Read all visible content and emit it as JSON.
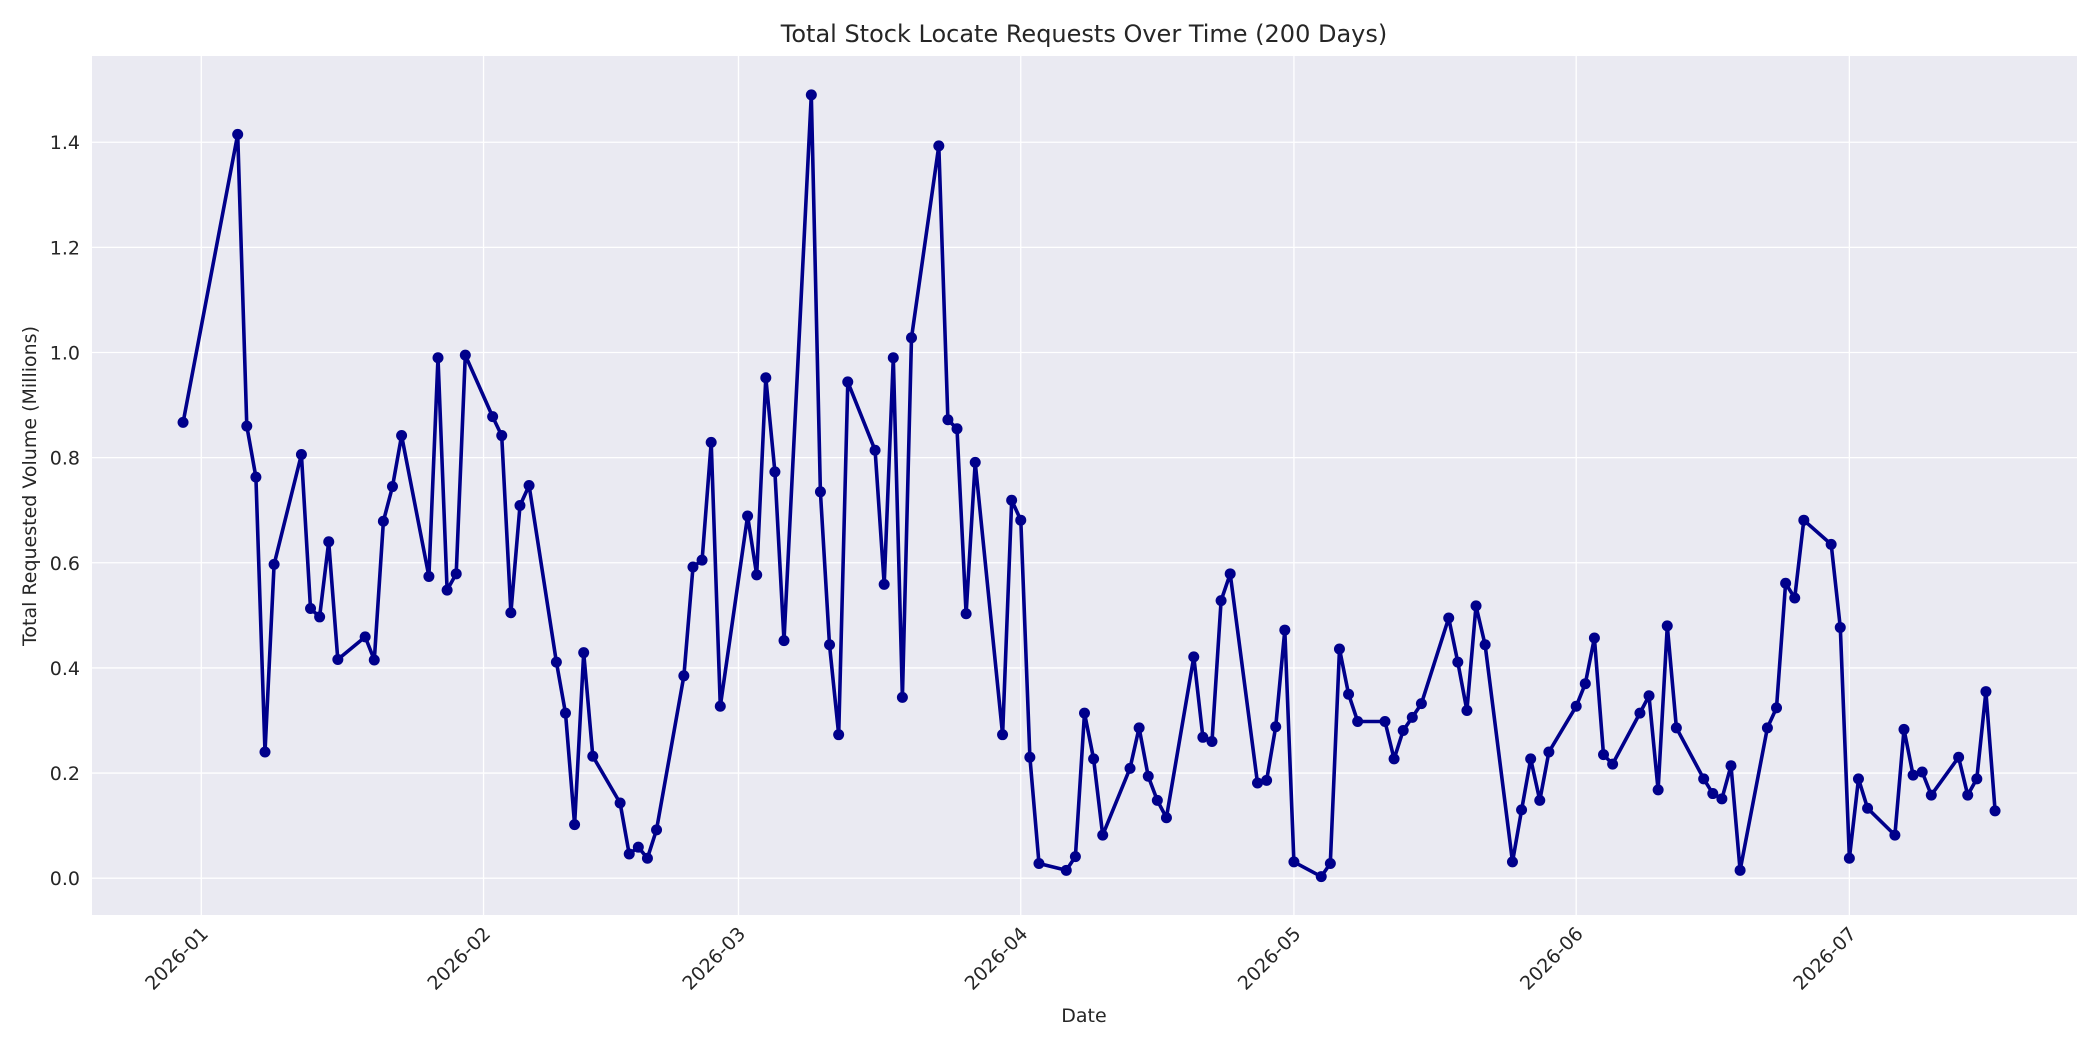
{
  "chart_data": {
    "type": "line",
    "title": "Total Stock Locate Requests Over Time (200 Days)",
    "xlabel": "Date",
    "ylabel": "Total Requested Volume (Millions)",
    "x": [
      "2025-12-30",
      "2026-01-05",
      "2026-01-06",
      "2026-01-07",
      "2026-01-08",
      "2026-01-09",
      "2026-01-12",
      "2026-01-13",
      "2026-01-14",
      "2026-01-15",
      "2026-01-16",
      "2026-01-19",
      "2026-01-20",
      "2026-01-21",
      "2026-01-22",
      "2026-01-23",
      "2026-01-26",
      "2026-01-27",
      "2026-01-28",
      "2026-01-29",
      "2026-01-30",
      "2026-02-02",
      "2026-02-03",
      "2026-02-04",
      "2026-02-05",
      "2026-02-06",
      "2026-02-09",
      "2026-02-10",
      "2026-02-11",
      "2026-02-12",
      "2026-02-13",
      "2026-02-16",
      "2026-02-17",
      "2026-02-18",
      "2026-02-19",
      "2026-02-20",
      "2026-02-23",
      "2026-02-24",
      "2026-02-25",
      "2026-02-26",
      "2026-02-27",
      "2026-03-02",
      "2026-03-03",
      "2026-03-04",
      "2026-03-05",
      "2026-03-06",
      "2026-03-09",
      "2026-03-10",
      "2026-03-11",
      "2026-03-12",
      "2026-03-13",
      "2026-03-16",
      "2026-03-17",
      "2026-03-18",
      "2026-03-19",
      "2026-03-20",
      "2026-03-23",
      "2026-03-24",
      "2026-03-25",
      "2026-03-26",
      "2026-03-27",
      "2026-03-30",
      "2026-03-31",
      "2026-04-01",
      "2026-04-02",
      "2026-04-03",
      "2026-04-06",
      "2026-04-07",
      "2026-04-08",
      "2026-04-09",
      "2026-04-10",
      "2026-04-13",
      "2026-04-14",
      "2026-04-15",
      "2026-04-16",
      "2026-04-17",
      "2026-04-20",
      "2026-04-21",
      "2026-04-22",
      "2026-04-23",
      "2026-04-24",
      "2026-04-27",
      "2026-04-28",
      "2026-04-29",
      "2026-04-30",
      "2026-05-01",
      "2026-05-04",
      "2026-05-05",
      "2026-05-06",
      "2026-05-07",
      "2026-05-08",
      "2026-05-11",
      "2026-05-12",
      "2026-05-13",
      "2026-05-14",
      "2026-05-15",
      "2026-05-18",
      "2026-05-19",
      "2026-05-20",
      "2026-05-21",
      "2026-05-22",
      "2026-05-25",
      "2026-05-26",
      "2026-05-27",
      "2026-05-28",
      "2026-05-29",
      "2026-06-01",
      "2026-06-02",
      "2026-06-03",
      "2026-06-04",
      "2026-06-05",
      "2026-06-08",
      "2026-06-09",
      "2026-06-10",
      "2026-06-11",
      "2026-06-12",
      "2026-06-15",
      "2026-06-16",
      "2026-06-17",
      "2026-06-18",
      "2026-06-19",
      "2026-06-22",
      "2026-06-23",
      "2026-06-24",
      "2026-06-25",
      "2026-06-26",
      "2026-06-29",
      "2026-06-30",
      "2026-07-01",
      "2026-07-02",
      "2026-07-03",
      "2026-07-06",
      "2026-07-07",
      "2026-07-08",
      "2026-07-09",
      "2026-07-10",
      "2026-07-13",
      "2026-07-14",
      "2026-07-15",
      "2026-07-16",
      "2026-07-17"
    ],
    "series": [
      {
        "name": "Total Requested Volume",
        "color": "#00008b",
        "values": [
          0.867,
          1.415,
          0.86,
          0.763,
          0.24,
          0.597,
          0.806,
          0.513,
          0.497,
          0.64,
          0.416,
          0.459,
          0.415,
          0.679,
          0.745,
          0.842,
          0.574,
          0.99,
          0.548,
          0.579,
          0.995,
          0.878,
          0.842,
          0.505,
          0.709,
          0.747,
          0.411,
          0.314,
          0.102,
          0.429,
          0.232,
          0.143,
          0.046,
          0.059,
          0.038,
          0.092,
          0.385,
          0.592,
          0.605,
          0.829,
          0.327,
          0.689,
          0.577,
          0.952,
          0.773,
          0.452,
          1.49,
          0.735,
          0.444,
          0.273,
          0.944,
          0.814,
          0.559,
          0.99,
          0.344,
          1.028,
          1.393,
          0.872,
          0.855,
          0.503,
          0.791,
          0.273,
          0.719,
          0.681,
          0.23,
          0.028,
          0.015,
          0.041,
          0.314,
          0.227,
          0.082,
          0.209,
          0.286,
          0.194,
          0.148,
          0.115,
          0.421,
          0.268,
          0.26,
          0.528,
          0.579,
          0.181,
          0.186,
          0.288,
          0.472,
          0.031,
          0.003,
          0.028,
          0.436,
          0.35,
          0.298,
          0.298,
          0.227,
          0.281,
          0.306,
          0.332,
          0.495,
          0.411,
          0.319,
          0.518,
          0.444,
          0.031,
          0.13,
          0.227,
          0.148,
          0.24,
          0.327,
          0.37,
          0.457,
          0.235,
          0.217,
          0.314,
          0.347,
          0.168,
          0.48,
          0.286,
          0.189,
          0.161,
          0.151,
          0.214,
          0.015,
          0.286,
          0.324,
          0.561,
          0.533,
          0.681,
          0.635,
          0.477,
          0.038,
          0.189,
          0.133,
          0.082,
          0.283,
          0.196,
          0.202,
          0.158,
          0.23,
          0.158,
          0.189,
          0.355,
          0.128
        ]
      }
    ],
    "xlim": [
      "2025-12-20",
      "2026-07-26"
    ],
    "xticks": [
      "2026-01",
      "2026-02",
      "2026-03",
      "2026-04",
      "2026-05",
      "2026-06",
      "2026-07"
    ],
    "ylim": [
      -0.07,
      1.564
    ],
    "yticks": [
      {
        "value": 0,
        "label": "0.0"
      },
      {
        "value": 0.2,
        "label": "0.2"
      },
      {
        "value": 0.4,
        "label": "0.4"
      },
      {
        "value": 0.6,
        "label": "0.6"
      },
      {
        "value": 0.8,
        "label": "0.8"
      },
      {
        "value": 1,
        "label": "1.0"
      },
      {
        "value": 1.2,
        "label": "1.2"
      },
      {
        "value": 1.4,
        "label": "1.4"
      }
    ],
    "grid": true
  }
}
